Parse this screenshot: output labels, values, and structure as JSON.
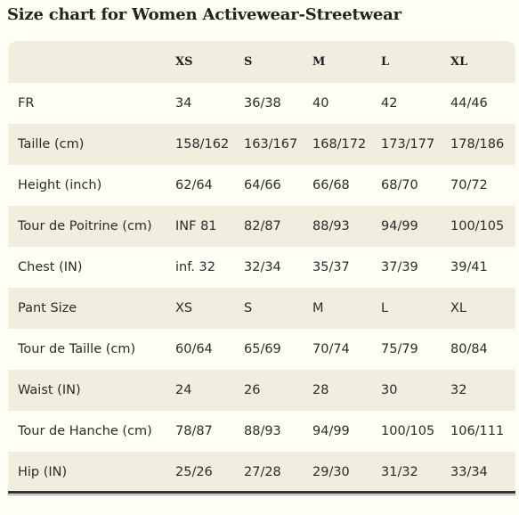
{
  "title": "Size chart for Women Activewear-Streetwear",
  "header": [
    "",
    "XS",
    "S",
    "M",
    "L",
    "XL"
  ],
  "rows": [
    {
      "label": "FR",
      "values": [
        "34",
        "36/38",
        "40",
        "42",
        "44/46"
      ]
    },
    {
      "label": "Taille (cm)",
      "values": [
        "158/162",
        "163/167",
        "168/172",
        "173/177",
        "178/186"
      ]
    },
    {
      "label": "Height (inch)",
      "values": [
        "62/64",
        "64/66",
        "66/68",
        "68/70",
        "70/72"
      ]
    },
    {
      "label": "Tour de Poitrine (cm)",
      "values": [
        "INF 81",
        "82/87",
        "88/93",
        "94/99",
        "100/105"
      ]
    },
    {
      "label": "Chest (IN)",
      "values": [
        "inf. 32",
        "32/34",
        "35/37",
        "37/39",
        "39/41"
      ]
    },
    {
      "label": "Pant Size",
      "values": [
        "XS",
        "S",
        "M",
        "L",
        "XL"
      ]
    },
    {
      "label": "Tour de Taille (cm)",
      "values": [
        "60/64",
        "65/69",
        "70/74",
        "75/79",
        "80/84"
      ]
    },
    {
      "label": "Waist (IN)",
      "values": [
        "24",
        "26",
        "28",
        "30",
        "32"
      ]
    },
    {
      "label": "Tour de Hanche (cm)",
      "values": [
        "78/87",
        "88/93",
        "94/99",
        "100/105",
        "106/111"
      ]
    },
    {
      "label": "Hip (IN)",
      "values": [
        "25/26",
        "27/28",
        "29/30",
        "31/32",
        "33/34"
      ]
    }
  ],
  "colors": {
    "page_background": "#fffef5",
    "stripe_background": "#f1eee0",
    "text": "#2b2b2b",
    "rule": "#333333"
  }
}
